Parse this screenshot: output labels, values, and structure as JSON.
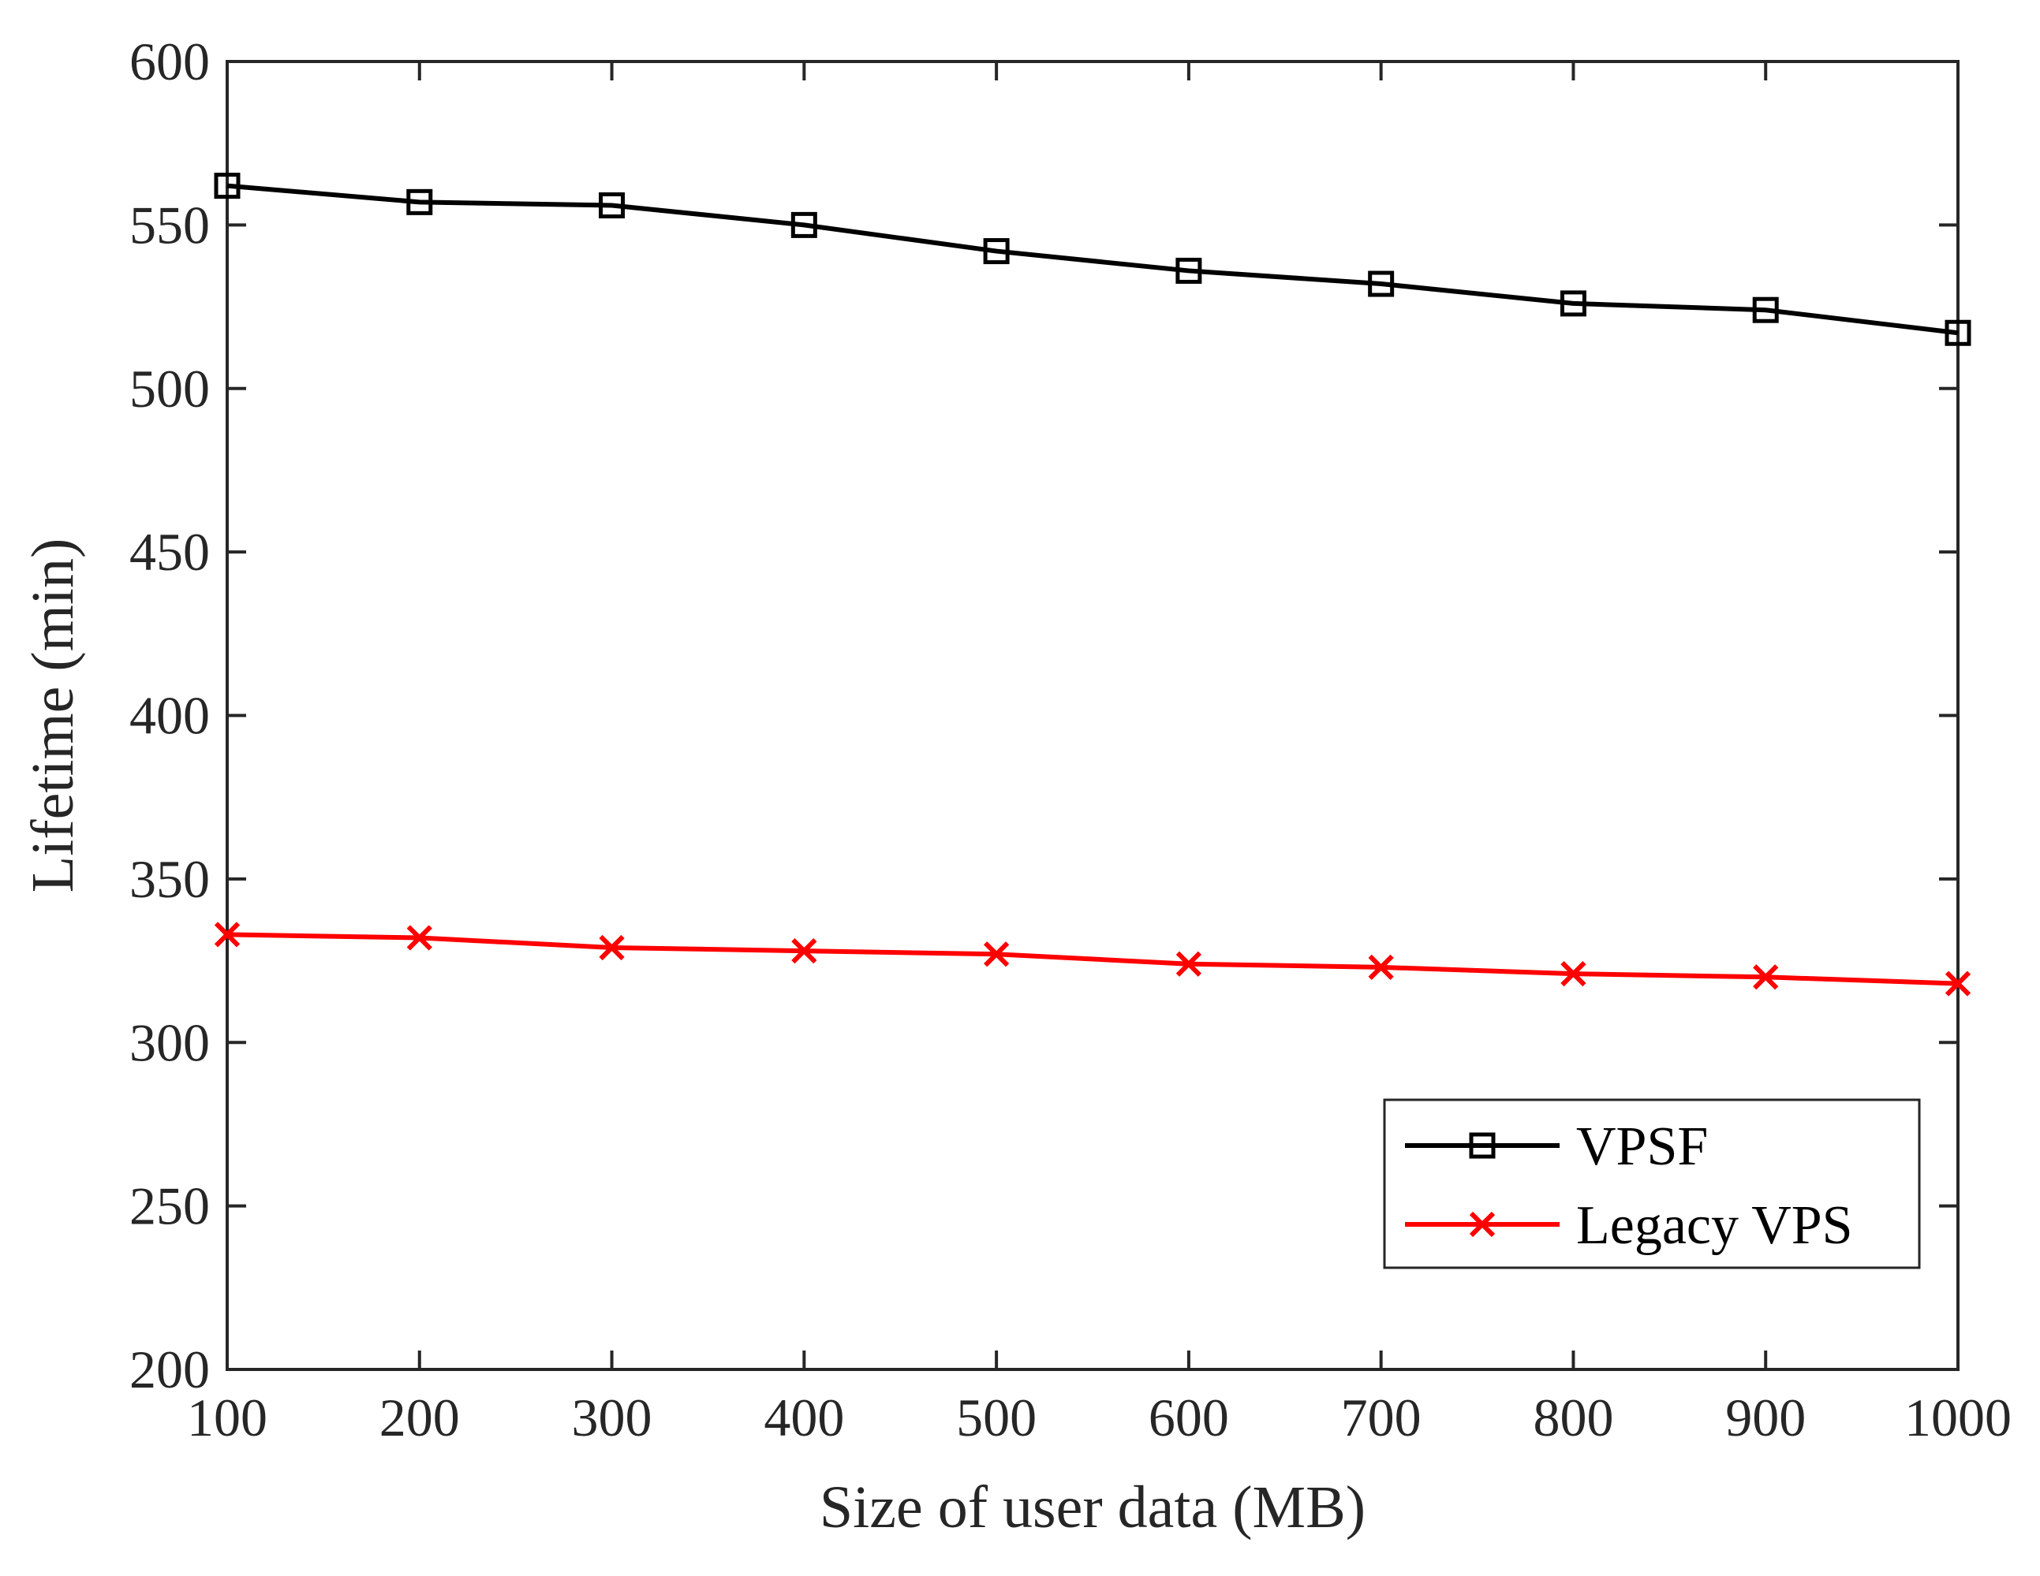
{
  "chart_data": {
    "type": "line",
    "title": "",
    "xlabel": "Size of user data (MB)",
    "ylabel": "Lifetime (min)",
    "xlim": [
      100,
      1000
    ],
    "ylim": [
      200,
      600
    ],
    "xticks": [
      "100",
      "200",
      "300",
      "400",
      "500",
      "600",
      "700",
      "800",
      "900",
      "1000"
    ],
    "yticks": [
      "200",
      "250",
      "300",
      "350",
      "400",
      "450",
      "500",
      "550",
      "600"
    ],
    "grid": false,
    "legend_position": "bottom-right",
    "x": [
      100,
      200,
      300,
      400,
      500,
      600,
      700,
      800,
      900,
      1000
    ],
    "series": [
      {
        "name": "VPSF",
        "color": "#000000",
        "marker": "square",
        "values": [
          562,
          557,
          556,
          550,
          542,
          536,
          532,
          526,
          524,
          517
        ]
      },
      {
        "name": "Legacy VPS",
        "color": "#ff0000",
        "marker": "x",
        "values": [
          333,
          332,
          329,
          328,
          327,
          324,
          323,
          321,
          320,
          318
        ]
      }
    ]
  }
}
